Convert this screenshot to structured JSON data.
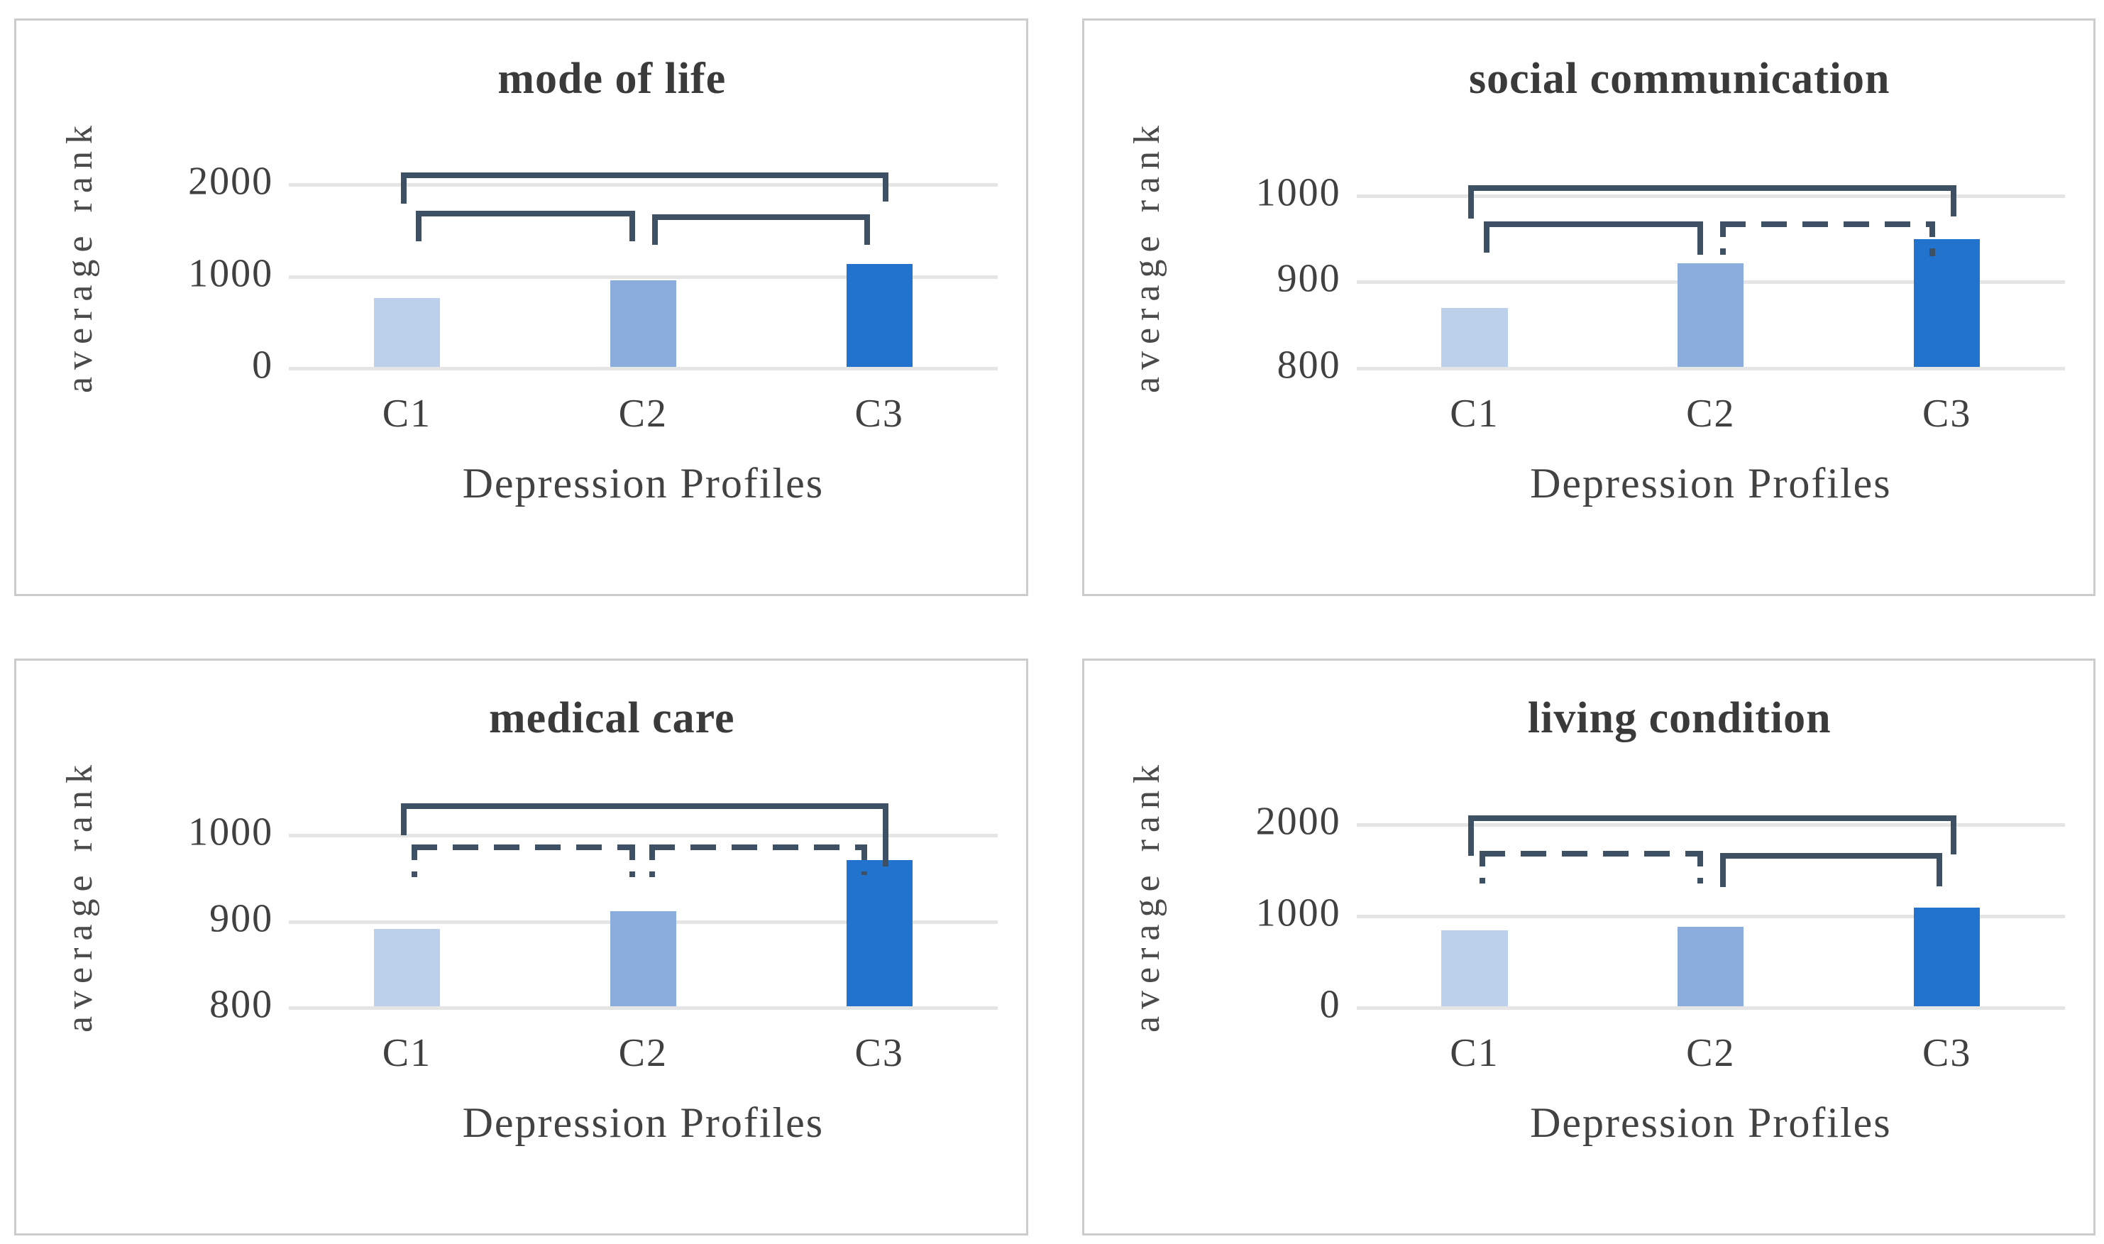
{
  "style": {
    "bracket_color": "#3d5064",
    "grid_color": "#e5e5e5",
    "panel_border_color": "#cccccc",
    "bar_colors": [
      "#bccfeb",
      "#8badde",
      "#2173ce"
    ]
  },
  "chart_data": [
    {
      "type": "bar",
      "title": "mode of life",
      "xlabel": "Depression Profiles",
      "ylabel": "average rank",
      "categories": [
        "C1",
        "C2",
        "C3"
      ],
      "values": [
        750,
        940,
        1120
      ],
      "ylim": [
        0,
        2400
      ],
      "yticks": [
        0,
        1000,
        2000
      ],
      "grid": true,
      "legend": "none",
      "significance_brackets": [
        {
          "from": 0,
          "to": 2,
          "style": "solid",
          "top": 2120,
          "leg_from": 1780,
          "leg_to": 1800,
          "dx_from_pct": -0.9,
          "dx_to_pct": 1.3
        },
        {
          "from": 0,
          "to": 1,
          "style": "solid",
          "top": 1700,
          "leg_from": 1370,
          "leg_to": 1370,
          "dx_from_pct": 1.3,
          "dx_to_pct": -1.1
        },
        {
          "from": 1,
          "to": 2,
          "style": "solid",
          "top": 1660,
          "leg_from": 1330,
          "leg_to": 1330,
          "dx_from_pct": 1.3,
          "dx_to_pct": -1.3
        }
      ]
    },
    {
      "type": "bar",
      "title": "social communication",
      "xlabel": "Depression Profiles",
      "ylabel": "average rank",
      "categories": [
        "C1",
        "C2",
        "C3"
      ],
      "values": [
        868,
        920,
        948
      ],
      "ylim": [
        800,
        1055
      ],
      "yticks": [
        800,
        900,
        1000
      ],
      "grid": true,
      "legend": "none",
      "significance_brackets": [
        {
          "from": 0,
          "to": 2,
          "style": "solid",
          "top": 1010,
          "leg_from": 972,
          "leg_to": 974,
          "dx_from_pct": -0.9,
          "dx_to_pct": 1.3
        },
        {
          "from": 0,
          "to": 1,
          "style": "solid",
          "top": 968,
          "leg_from": 932,
          "leg_to": 930,
          "dx_from_pct": 1.3,
          "dx_to_pct": -1.1
        },
        {
          "from": 1,
          "to": 2,
          "style": "dashed",
          "top": 968,
          "leg_from": 930,
          "leg_to": 928,
          "dx_from_pct": 1.3,
          "dx_to_pct": -1.7
        }
      ]
    },
    {
      "type": "bar",
      "title": "medical care",
      "xlabel": "Depression Profiles",
      "ylabel": "average rank",
      "categories": [
        "C1",
        "C2",
        "C3"
      ],
      "values": [
        890,
        910,
        970
      ],
      "ylim": [
        800,
        1055
      ],
      "yticks": [
        800,
        900,
        1000
      ],
      "grid": true,
      "legend": "none",
      "significance_brackets": [
        {
          "from": 0,
          "to": 2,
          "style": "solid",
          "top": 1035,
          "leg_from": 998,
          "leg_to": 962,
          "dx_from_pct": -0.9,
          "dx_to_pct": 1.3
        },
        {
          "from": 0,
          "to": 1,
          "style": "dashed",
          "top": 988,
          "leg_from": 950,
          "leg_to": 950,
          "dx_from_pct": 0.7,
          "dx_to_pct": -1.1
        },
        {
          "from": 1,
          "to": 2,
          "style": "dashed",
          "top": 988,
          "leg_from": 950,
          "leg_to": 952,
          "dx_from_pct": 0.9,
          "dx_to_pct": -1.7
        }
      ]
    },
    {
      "type": "bar",
      "title": "living condition",
      "xlabel": "Depression Profiles",
      "ylabel": "average rank",
      "categories": [
        "C1",
        "C2",
        "C3"
      ],
      "values": [
        830,
        870,
        1080
      ],
      "ylim": [
        0,
        2400
      ],
      "yticks": [
        0,
        1000,
        2000
      ],
      "grid": true,
      "legend": "none",
      "significance_brackets": [
        {
          "from": 0,
          "to": 2,
          "style": "solid",
          "top": 2080,
          "leg_from": 1640,
          "leg_to": 1660,
          "dx_from_pct": -0.9,
          "dx_to_pct": 1.3
        },
        {
          "from": 0,
          "to": 1,
          "style": "dashed",
          "top": 1700,
          "leg_from": 1340,
          "leg_to": 1340,
          "dx_from_pct": 0.7,
          "dx_to_pct": -1.1
        },
        {
          "from": 1,
          "to": 2,
          "style": "solid",
          "top": 1670,
          "leg_from": 1300,
          "leg_to": 1310,
          "dx_from_pct": 1.3,
          "dx_to_pct": -0.7
        }
      ]
    }
  ]
}
